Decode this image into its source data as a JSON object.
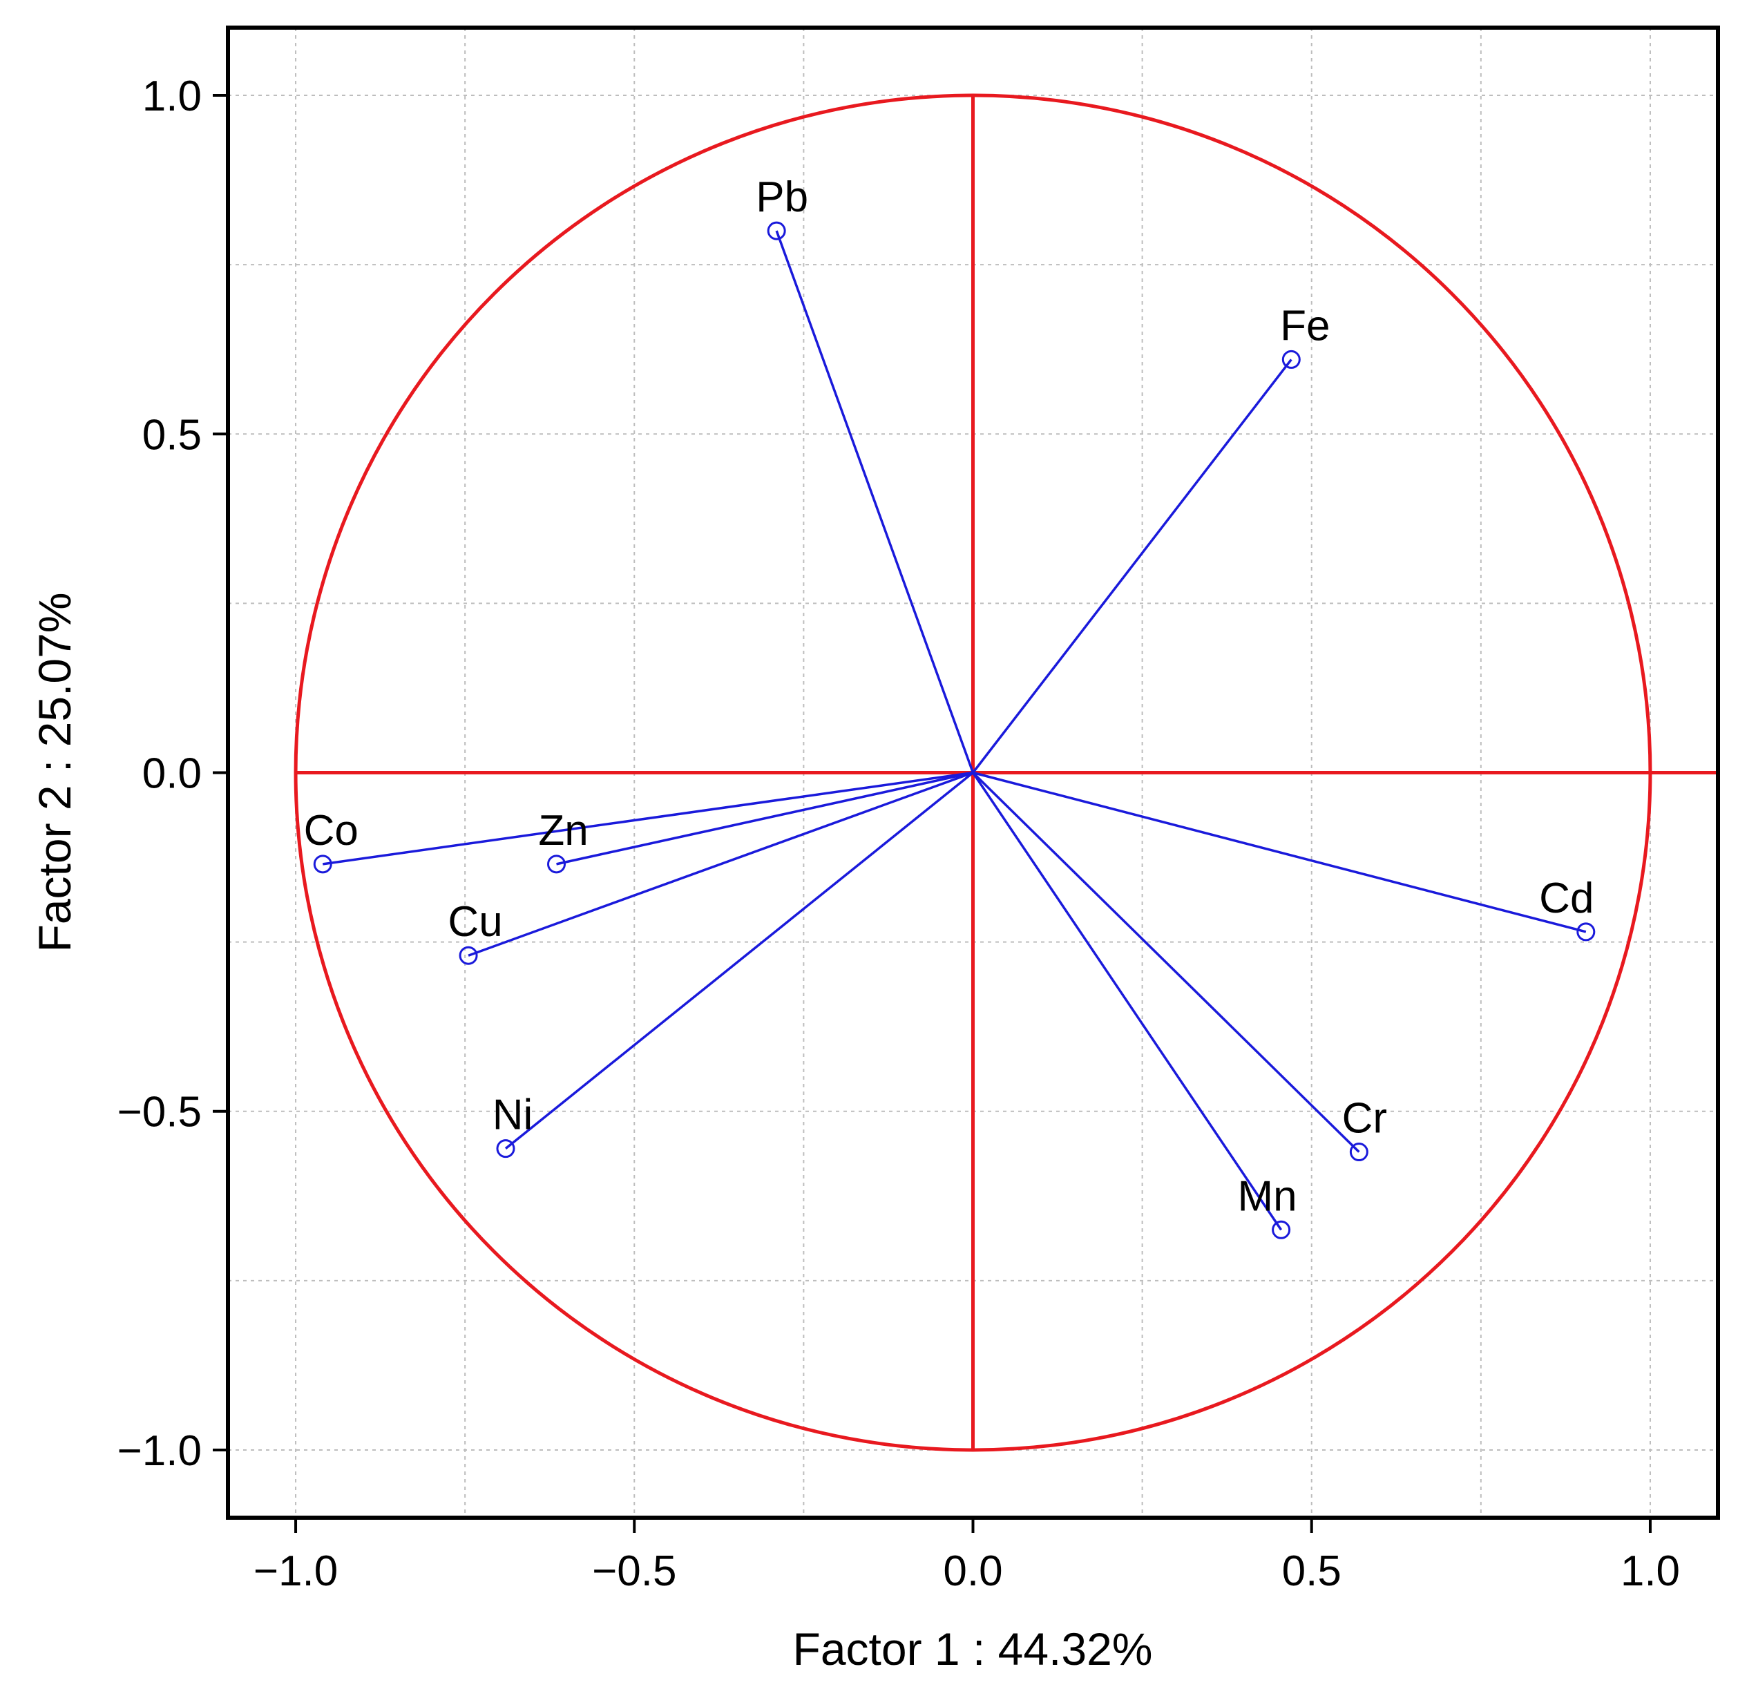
{
  "chart_data": {
    "type": "scatter",
    "title": "",
    "xlabel": "Factor 1 : 44.32%",
    "ylabel": "Factor 2 : 25.07%",
    "xlim": [
      -1.1,
      1.1
    ],
    "ylim": [
      -1.1,
      1.1
    ],
    "xticks": [
      -1.0,
      -0.5,
      0.0,
      0.5,
      1.0
    ],
    "yticks": [
      -1.0,
      -0.5,
      0.0,
      0.5,
      1.0
    ],
    "xtick_labels": [
      "−1.0",
      "−0.5",
      "0.0",
      "0.5",
      "1.0"
    ],
    "ytick_labels": [
      "−1.0",
      "−0.5",
      "0.0",
      "0.5",
      "1.0"
    ],
    "minor_grid_step": 0.25,
    "grid": true,
    "unit_circle_radius": 1.0,
    "colors": {
      "circle": "#e8191f",
      "vectors": "#1a1adb",
      "grid": "#bdbdbd",
      "frame": "#000000"
    },
    "series": [
      {
        "name": "Pb",
        "x": -0.29,
        "y": 0.8
      },
      {
        "name": "Fe",
        "x": 0.47,
        "y": 0.61
      },
      {
        "name": "Co",
        "x": -0.96,
        "y": -0.135
      },
      {
        "name": "Zn",
        "x": -0.615,
        "y": -0.135
      },
      {
        "name": "Cu",
        "x": -0.745,
        "y": -0.27
      },
      {
        "name": "Ni",
        "x": -0.69,
        "y": -0.555
      },
      {
        "name": "Cd",
        "x": 0.905,
        "y": -0.235
      },
      {
        "name": "Cr",
        "x": 0.57,
        "y": -0.56
      },
      {
        "name": "Mn",
        "x": 0.455,
        "y": -0.675
      }
    ]
  }
}
